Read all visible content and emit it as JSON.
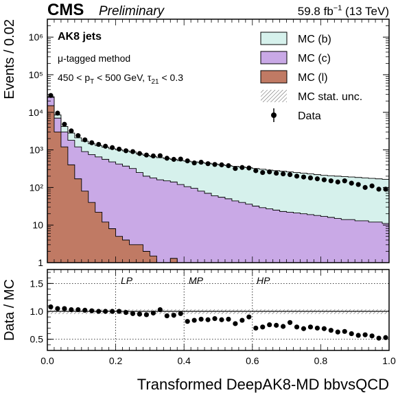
{
  "header": {
    "experiment": "CMS",
    "status": "Preliminary",
    "lumi_value": "59.8 fb",
    "lumi_exp": "−1",
    "lumi_energy": " (13 TeV)"
  },
  "annotations": {
    "jets": "AK8 jets",
    "method": "μ-tagged method",
    "cut_prefix": "450 < p",
    "cut_sub1": "T",
    "cut_mid": " < 500 GeV, τ",
    "cut_sub2": "21",
    "cut_suffix": " < 0.3"
  },
  "legend_labels": {
    "b": "MC (b)",
    "c": "MC (c)",
    "l": "MC (l)",
    "unc": "MC stat. unc.",
    "data": "Data"
  },
  "regions": [
    "LP",
    "MP",
    "HP"
  ],
  "colors": {
    "mc_b": "#d6f1ec",
    "mc_c": "#c9a9e6",
    "mc_l": "#c07a64",
    "data": "#000000"
  },
  "chart_data": [
    {
      "type": "area",
      "xlabel": "Transformed DeepAK8-MD bbvsQCD",
      "ylabel": "Events / 0.02",
      "xlim": [
        0,
        1
      ],
      "ylim": [
        1,
        3000000
      ],
      "log_y": true,
      "x_ticks": [
        "0.0",
        "0.2",
        "0.4",
        "0.6",
        "0.8",
        "1.0"
      ],
      "y_ticks": [
        "1",
        "10",
        "10²",
        "10³",
        "10⁴",
        "10⁵",
        "10⁶"
      ],
      "bin_width": 0.02,
      "bins_x": [
        0.01,
        0.03,
        0.05,
        0.07,
        0.09,
        0.11,
        0.13,
        0.15,
        0.17,
        0.19,
        0.21,
        0.23,
        0.25,
        0.27,
        0.29,
        0.31,
        0.33,
        0.35,
        0.37,
        0.39,
        0.41,
        0.43,
        0.45,
        0.47,
        0.49,
        0.51,
        0.53,
        0.55,
        0.57,
        0.59,
        0.61,
        0.63,
        0.65,
        0.67,
        0.69,
        0.71,
        0.73,
        0.75,
        0.77,
        0.79,
        0.81,
        0.83,
        0.85,
        0.87,
        0.89,
        0.91,
        0.93,
        0.95,
        0.97,
        0.99
      ],
      "series": [
        {
          "name": "MC (l)",
          "values": [
            15000,
            3000,
            1200,
            400,
            170,
            80,
            40,
            22,
            12,
            8,
            5,
            4,
            3,
            3,
            2,
            1.5,
            1,
            1,
            1.3,
            1,
            0.5,
            0.5,
            0.5,
            0.5,
            0.5,
            0.5,
            0.5,
            0.5,
            0.5,
            0.5,
            0.5,
            0.5,
            0.5,
            0.5,
            0.5,
            0.5,
            0.5,
            0.5,
            0.5,
            0.5,
            0.5,
            0.5,
            0.5,
            0.5,
            0.5,
            0.5,
            0.5,
            0.5,
            0.5,
            0.5
          ]
        },
        {
          "name": "MC (c)",
          "values": [
            25000,
            7000,
            3000,
            1800,
            1200,
            900,
            750,
            650,
            560,
            480,
            420,
            370,
            320,
            250,
            200,
            180,
            160,
            150,
            140,
            120,
            105,
            95,
            80,
            70,
            60,
            55,
            50,
            44,
            40,
            36,
            32,
            29,
            27,
            25,
            23,
            22,
            21,
            20,
            19,
            18,
            17,
            16,
            15,
            14,
            14,
            13,
            13,
            12,
            12,
            11
          ]
        },
        {
          "name": "MC (b)",
          "values": [
            26000,
            8500,
            4200,
            2800,
            2100,
            1700,
            1450,
            1300,
            1180,
            1070,
            1000,
            940,
            880,
            780,
            720,
            660,
            620,
            590,
            560,
            520,
            500,
            480,
            460,
            440,
            420,
            400,
            380,
            365,
            350,
            335,
            320,
            305,
            290,
            280,
            270,
            260,
            250,
            240,
            230,
            220,
            210,
            205,
            200,
            195,
            190,
            185,
            180,
            175,
            170,
            165
          ]
        },
        {
          "name": "Data",
          "values": [
            28000,
            9500,
            4800,
            3200,
            2400,
            1850,
            1550,
            1400,
            1250,
            1150,
            1050,
            950,
            900,
            800,
            730,
            690,
            700,
            600,
            560,
            570,
            510,
            450,
            470,
            430,
            410,
            400,
            380,
            320,
            340,
            330,
            280,
            250,
            260,
            240,
            230,
            220,
            200,
            190,
            180,
            170,
            160,
            150,
            140,
            150,
            130,
            120,
            100,
            110,
            90,
            90
          ]
        }
      ]
    },
    {
      "type": "scatter",
      "xlabel": "Transformed DeepAK8-MD bbvsQCD",
      "ylabel": "Data / MC",
      "xlim": [
        0,
        1
      ],
      "ylim": [
        0.3,
        1.75
      ],
      "y_ticks": [
        "0.5",
        "1.0",
        "1.5"
      ],
      "reference_lines": [
        0.5,
        1.0,
        1.5
      ],
      "region_boundaries": [
        0.2,
        0.4,
        0.6
      ],
      "series": [
        {
          "name": "Data",
          "values": [
            1.08,
            1.05,
            1.05,
            1.03,
            1.03,
            1.02,
            1.01,
            1.0,
            1.0,
            1.0,
            1.0,
            0.98,
            0.96,
            0.95,
            0.94,
            0.97,
            1.03,
            0.92,
            0.93,
            0.96,
            0.82,
            0.84,
            0.86,
            0.85,
            0.87,
            0.85,
            0.86,
            0.78,
            0.84,
            0.9,
            0.7,
            0.72,
            0.76,
            0.75,
            0.73,
            0.8,
            0.72,
            0.69,
            0.72,
            0.7,
            0.69,
            0.66,
            0.63,
            0.64,
            0.6,
            0.57,
            0.58,
            0.56,
            0.52,
            0.53
          ]
        }
      ]
    }
  ]
}
